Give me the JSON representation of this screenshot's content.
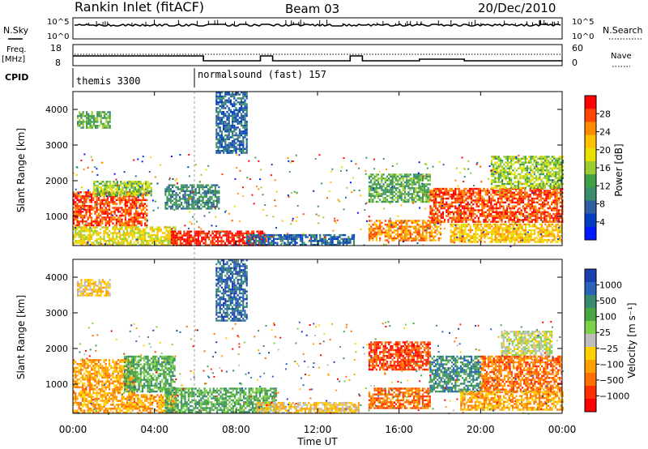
{
  "header": {
    "station": "Rankin Inlet (fitACF)",
    "beam": "Beam 03",
    "date": "20/Dec/2010"
  },
  "top_panels": {
    "nsky_label": "N.Sky",
    "nsky_ticks": [
      "10^5",
      "10^0"
    ],
    "nsearch_label": "N.Search",
    "nsearch_ticks": [
      "10^5",
      "10^0"
    ],
    "freq_label": "Freq.",
    "freq_unit": "[MHz]",
    "freq_ticks": [
      "18",
      "8"
    ],
    "nave_label": "Nave",
    "nave_ticks": [
      "60",
      "0"
    ],
    "cpid_label": "CPID",
    "cpid_segments": [
      "themis 3300",
      "normalsound (fast) 157"
    ]
  },
  "chart_data": [
    {
      "type": "heatmap",
      "name": "power",
      "ylabel": "Slant Range [km]",
      "xlabel": "Time UT",
      "x_ticks": [
        "00:00",
        "04:00",
        "08:00",
        "12:00",
        "16:00",
        "20:00",
        "00:00"
      ],
      "xlim_hours": [
        0,
        24
      ],
      "ylim_km": [
        180,
        4500
      ],
      "y_ticks": [
        1000,
        2000,
        3000,
        4000
      ],
      "colorbar_label": "Power [dB]",
      "colorbar_ticks": [
        "28",
        "24",
        "20",
        "16",
        "12",
        "8",
        "4"
      ],
      "colorbar_colors": [
        "#0018ff",
        "#0040c0",
        "#2f5fa0",
        "#3a8c6a",
        "#3fa048",
        "#9acd32",
        "#e8e000",
        "#ffc000",
        "#ff8c00",
        "#ff4500",
        "#ff0000"
      ],
      "echo_regions": [
        {
          "t0": 0.0,
          "t1": 3.6,
          "r0": 750,
          "r1": 1700,
          "level": 9
        },
        {
          "t0": 0.0,
          "t1": 5.0,
          "r0": 200,
          "r1": 720,
          "level": 6
        },
        {
          "t0": 1.0,
          "t1": 3.8,
          "r0": 1600,
          "r1": 2000,
          "level": 5
        },
        {
          "t0": 4.8,
          "t1": 9.5,
          "r0": 200,
          "r1": 600,
          "level": 10
        },
        {
          "t0": 8.5,
          "t1": 13.8,
          "r0": 200,
          "r1": 500,
          "level": 2
        },
        {
          "t0": 4.5,
          "t1": 7.2,
          "r0": 1200,
          "r1": 1900,
          "level": 3
        },
        {
          "t0": 7.0,
          "t1": 8.5,
          "r0": 2800,
          "r1": 4500,
          "level": 2
        },
        {
          "t0": 14.5,
          "t1": 18.0,
          "r0": 350,
          "r1": 900,
          "level": 8
        },
        {
          "t0": 14.5,
          "t1": 17.5,
          "r0": 1400,
          "r1": 2200,
          "level": 4
        },
        {
          "t0": 17.5,
          "t1": 24.0,
          "r0": 850,
          "r1": 1800,
          "level": 9
        },
        {
          "t0": 18.5,
          "t1": 24.0,
          "r0": 300,
          "r1": 800,
          "level": 7
        },
        {
          "t0": 20.5,
          "t1": 24.0,
          "r0": 1800,
          "r1": 2700,
          "level": 5
        },
        {
          "t0": 0.2,
          "t1": 1.8,
          "r0": 3500,
          "r1": 3950,
          "level": 4
        }
      ]
    },
    {
      "type": "heatmap",
      "name": "velocity",
      "ylabel": "Slant Range [km]",
      "xlabel": "Time UT",
      "x_ticks": [
        "00:00",
        "04:00",
        "08:00",
        "12:00",
        "16:00",
        "20:00",
        "00:00"
      ],
      "xlim_hours": [
        0,
        24
      ],
      "ylim_km": [
        180,
        4500
      ],
      "y_ticks": [
        1000,
        2000,
        3000,
        4000
      ],
      "colorbar_label": "Velocity [m s⁻¹]",
      "colorbar_ticks": [
        "1000",
        "500",
        "100",
        "25",
        "−25",
        "−100",
        "−500",
        "−1000"
      ],
      "colorbar_colors": [
        "#1c3fb0",
        "#2a64b8",
        "#3a8a70",
        "#4aa640",
        "#7dd04a",
        "#bdbdbd",
        "#ffd000",
        "#ffa000",
        "#ff7000",
        "#ff3000",
        "#ff0000"
      ],
      "echo_regions": [
        {
          "t0": 0.0,
          "t1": 3.0,
          "r0": 750,
          "r1": 1700,
          "level": 7
        },
        {
          "t0": 2.5,
          "t1": 5.0,
          "r0": 800,
          "r1": 1800,
          "level": 3
        },
        {
          "t0": 0.0,
          "t1": 5.0,
          "r0": 200,
          "r1": 720,
          "level": 7
        },
        {
          "t0": 4.5,
          "t1": 10.0,
          "r0": 200,
          "r1": 900,
          "level": 3
        },
        {
          "t0": 9.0,
          "t1": 14.0,
          "r0": 200,
          "r1": 500,
          "level": 6
        },
        {
          "t0": 7.0,
          "t1": 8.5,
          "r0": 2800,
          "r1": 4500,
          "level": 1
        },
        {
          "t0": 14.5,
          "t1": 17.5,
          "r0": 300,
          "r1": 900,
          "level": 8
        },
        {
          "t0": 14.5,
          "t1": 17.5,
          "r0": 1400,
          "r1": 2200,
          "level": 9
        },
        {
          "t0": 17.5,
          "t1": 20.0,
          "r0": 800,
          "r1": 1800,
          "level": 2
        },
        {
          "t0": 20.0,
          "t1": 24.0,
          "r0": 800,
          "r1": 1800,
          "level": 8
        },
        {
          "t0": 19.0,
          "t1": 24.0,
          "r0": 300,
          "r1": 800,
          "level": 7
        },
        {
          "t0": 21.0,
          "t1": 23.5,
          "r0": 1800,
          "r1": 2500,
          "level": 5
        },
        {
          "t0": 0.2,
          "t1": 1.8,
          "r0": 3500,
          "r1": 3950,
          "level": 6
        }
      ]
    }
  ]
}
